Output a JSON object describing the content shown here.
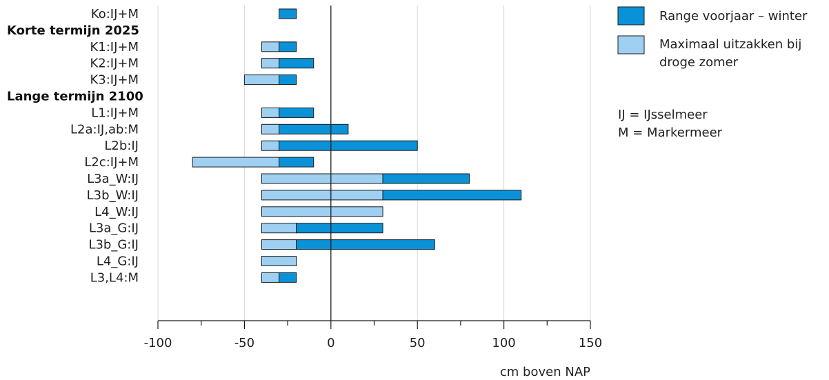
{
  "chart_data": {
    "type": "bar",
    "orientation": "horizontal",
    "xlabel": "cm boven NAP",
    "xlim": [
      -100,
      150
    ],
    "xticks": [
      -100,
      -50,
      0,
      50,
      100,
      150
    ],
    "grid": true,
    "legend_position": "top-right",
    "colors": {
      "range": "#0a92d8",
      "sag": "#9fd0f2",
      "outline": "#1a1a1a"
    },
    "series": [
      {
        "key": "range",
        "name": "Range voorjaar – winter"
      },
      {
        "key": "sag",
        "name": "Maximaal uitzakken bij droge zomer"
      }
    ],
    "legend_notes": [
      "IJ = IJsselmeer",
      "M = Markermeer"
    ],
    "rows": [
      {
        "kind": "bar",
        "label": "Ko:IJ+M",
        "range": [
          -30,
          -20
        ],
        "sag": null
      },
      {
        "kind": "header",
        "label": "Korte termijn 2025"
      },
      {
        "kind": "bar",
        "label": "K1:IJ+M",
        "range": [
          -30,
          -20
        ],
        "sag": [
          -40,
          -30
        ]
      },
      {
        "kind": "bar",
        "label": "K2:IJ+M",
        "range": [
          -30,
          -10
        ],
        "sag": [
          -40,
          -30
        ]
      },
      {
        "kind": "bar",
        "label": "K3:IJ+M",
        "range": [
          -30,
          -20
        ],
        "sag": [
          -50,
          -30
        ]
      },
      {
        "kind": "header",
        "label": "Lange termijn 2100"
      },
      {
        "kind": "bar",
        "label": "L1:IJ+M",
        "range": [
          -30,
          -10
        ],
        "sag": [
          -40,
          -30
        ]
      },
      {
        "kind": "bar",
        "label": "L2a:IJ,ab:M",
        "range": [
          -30,
          10
        ],
        "sag": [
          -40,
          -30
        ]
      },
      {
        "kind": "bar",
        "label": "L2b:IJ",
        "range": [
          -30,
          50
        ],
        "sag": [
          -40,
          -30
        ]
      },
      {
        "kind": "bar",
        "label": "L2c:IJ+M",
        "range": [
          -30,
          -10
        ],
        "sag": [
          -80,
          -30
        ]
      },
      {
        "kind": "bar",
        "label": "L3a_W:IJ",
        "range": [
          30,
          80
        ],
        "sag": [
          -40,
          30
        ]
      },
      {
        "kind": "bar",
        "label": "L3b_W:IJ",
        "range": [
          30,
          110
        ],
        "sag": [
          -40,
          30
        ]
      },
      {
        "kind": "bar",
        "label": "L4_W:IJ",
        "range": null,
        "sag": [
          -40,
          30
        ]
      },
      {
        "kind": "bar",
        "label": "L3a_G:IJ",
        "range": [
          -20,
          30
        ],
        "sag": [
          -40,
          -20
        ]
      },
      {
        "kind": "bar",
        "label": "L3b_G:IJ",
        "range": [
          -20,
          60
        ],
        "sag": [
          -40,
          -20
        ]
      },
      {
        "kind": "bar",
        "label": "L4_G:IJ",
        "range": null,
        "sag": [
          -40,
          -20
        ]
      },
      {
        "kind": "bar",
        "label": "L3,L4:M",
        "range": [
          -30,
          -20
        ],
        "sag": [
          -40,
          -30
        ]
      }
    ]
  }
}
